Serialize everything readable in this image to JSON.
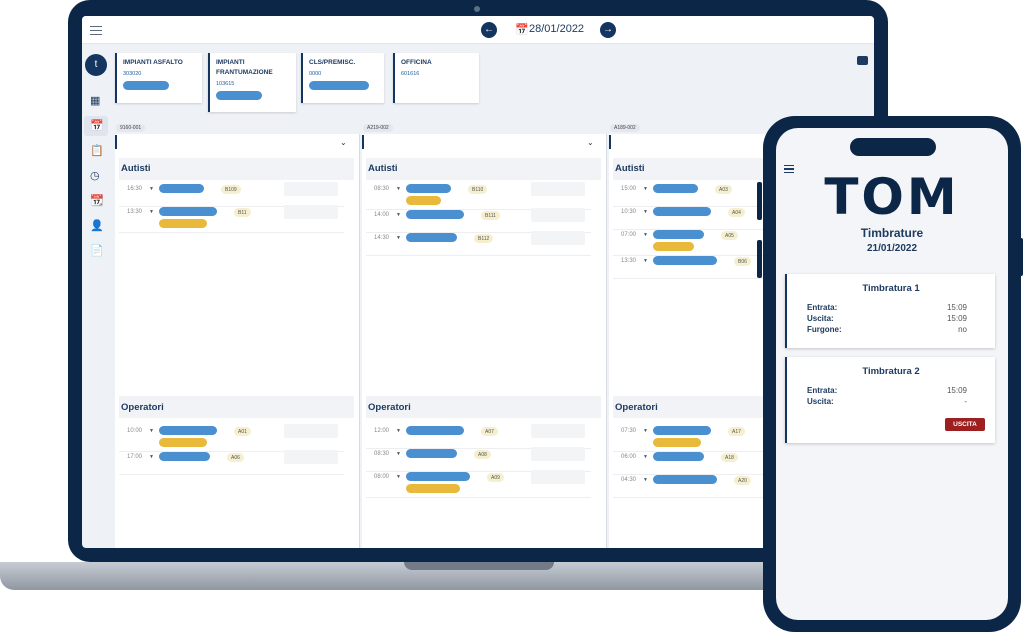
{
  "header": {
    "date": "28/01/2022"
  },
  "user": {
    "initial": "t"
  },
  "sidebar": {
    "icons": [
      "dashboard-icon",
      "calendar-icon",
      "clipboard-user-icon",
      "clock-icon",
      "calendar-check-icon",
      "user-settings-icon",
      "report-icon"
    ]
  },
  "plants": [
    {
      "name": "IMPIANTI ASFALTO",
      "code": "303020",
      "has_pill": true
    },
    {
      "name": "IMPIANTI FRANTUMAZIONE",
      "code": "103615",
      "has_pill": true
    },
    {
      "name": "CLS/PREMISC.",
      "code": "0000",
      "has_pill": true
    },
    {
      "name": "OFFICINA",
      "code": "601616",
      "has_pill": false
    }
  ],
  "columns": [
    {
      "chip": "9160-001",
      "autisti_title": "Autisti",
      "operatori_title": "Operatori",
      "autisti": [
        {
          "time": "16:30",
          "badge": "B109",
          "yellow": false
        },
        {
          "time": "13:30",
          "badge": "B11",
          "yellow": true
        }
      ],
      "operatori": [
        {
          "time": "10:00",
          "badge": "A01",
          "yellow": true
        },
        {
          "time": "17:00",
          "badge": "A06",
          "yellow": false
        }
      ]
    },
    {
      "chip": "A219-002",
      "autisti_title": "Autisti",
      "operatori_title": "Operatori",
      "autisti": [
        {
          "time": "08:30",
          "badge": "B110",
          "yellow": true
        },
        {
          "time": "14:00",
          "badge": "B111",
          "yellow": false
        },
        {
          "time": "14:30",
          "badge": "B112",
          "yellow": false
        }
      ],
      "operatori": [
        {
          "time": "12:00",
          "badge": "A07",
          "yellow": false
        },
        {
          "time": "08:30",
          "badge": "A08",
          "yellow": false
        },
        {
          "time": "08:00",
          "badge": "A09",
          "yellow": true
        }
      ]
    },
    {
      "chip": "A189-002",
      "autisti_title": "Autisti",
      "operatori_title": "Operatori",
      "autisti": [
        {
          "time": "15:00",
          "badge": "A03",
          "yellow": false
        },
        {
          "time": "10:30",
          "badge": "A04",
          "yellow": false
        },
        {
          "time": "07:00",
          "badge": "A05",
          "yellow": true
        },
        {
          "time": "13:30",
          "badge": "B06",
          "yellow": false
        }
      ],
      "operatori": [
        {
          "time": "07:30",
          "badge": "A17",
          "yellow": true
        },
        {
          "time": "06:00",
          "badge": "A18",
          "yellow": false
        },
        {
          "time": "04:30",
          "badge": "A20",
          "yellow": false
        }
      ]
    }
  ],
  "phone": {
    "logo": "TOM",
    "title": "Timbrature",
    "date": "21/01/2022",
    "cards": [
      {
        "title": "Timbratura 1",
        "rows": [
          {
            "label": "Entrata:",
            "value": "15:09"
          },
          {
            "label": "Uscita:",
            "value": "15:09"
          },
          {
            "label": "Furgone:",
            "value": "no"
          }
        ]
      },
      {
        "title": "Timbratura 2",
        "rows": [
          {
            "label": "Entrata:",
            "value": "15:09"
          },
          {
            "label": "Uscita:",
            "value": "-"
          }
        ],
        "button": "USCITA"
      }
    ]
  },
  "colors": {
    "navy": "#0c2647",
    "blue": "#4a8fd0",
    "yellow": "#e8b93a",
    "button": "#9e1f1f"
  }
}
